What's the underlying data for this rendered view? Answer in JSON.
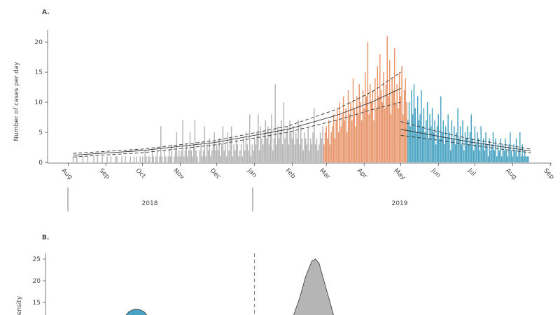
{
  "chart_data": [
    {
      "type": "bar",
      "panel": "A.",
      "ylabel": "Number of cases per day",
      "xlim": [
        -17,
        397
      ],
      "xticks": [
        {
          "value": 0,
          "label": "Aug"
        },
        {
          "value": 31,
          "label": "Sep"
        },
        {
          "value": 61,
          "label": "Oct"
        },
        {
          "value": 92,
          "label": "Nov"
        },
        {
          "value": 122,
          "label": "Dec"
        },
        {
          "value": 153,
          "label": "Jan"
        },
        {
          "value": 184,
          "label": "Feb"
        },
        {
          "value": 212,
          "label": "Mar"
        },
        {
          "value": 243,
          "label": "Apr"
        },
        {
          "value": 273,
          "label": "May"
        },
        {
          "value": 304,
          "label": "Jun"
        },
        {
          "value": 334,
          "label": "Jul"
        },
        {
          "value": 365,
          "label": "Aug"
        },
        {
          "value": 396,
          "label": "Sep"
        }
      ],
      "ylim": [
        0,
        22
      ],
      "yticks": [
        0,
        5,
        10,
        15,
        20
      ],
      "years": [
        "2018",
        "2019"
      ],
      "series": [
        {
          "type": "bar",
          "color": "#b5b5b5",
          "x": [
            4,
            5,
            6,
            7,
            8,
            9,
            10,
            11,
            12,
            13,
            14,
            15,
            16,
            17,
            18,
            19,
            20,
            21,
            22,
            23,
            24,
            25,
            26,
            27,
            28,
            29,
            30,
            31,
            32,
            33,
            34,
            35,
            36,
            37,
            38,
            39,
            40,
            41,
            42,
            43,
            44,
            45,
            46,
            47,
            48,
            49,
            50,
            51,
            52,
            53,
            54,
            55,
            56,
            57,
            58,
            59,
            60,
            61,
            62,
            63,
            64,
            65,
            66,
            67,
            68,
            69,
            70,
            71,
            72,
            73,
            74,
            75,
            76,
            77,
            78,
            79,
            80,
            81,
            82,
            83,
            84,
            85,
            86,
            87,
            88,
            89,
            90,
            91,
            92,
            93,
            94,
            95,
            96,
            97,
            98,
            99,
            100,
            101,
            102,
            103,
            104,
            105,
            106,
            107,
            108,
            109,
            110,
            111,
            112,
            113,
            114,
            115,
            116,
            117,
            118,
            119,
            120,
            121,
            122,
            123,
            124,
            125,
            126,
            127,
            128,
            129,
            130,
            131,
            132,
            133,
            134,
            135,
            136,
            137,
            138,
            139,
            140,
            141,
            142,
            143,
            144,
            145,
            146,
            147,
            148,
            149,
            150,
            151,
            152,
            153,
            154,
            155,
            156,
            157,
            158,
            159,
            160,
            161,
            162,
            163,
            164,
            165,
            166,
            167,
            168,
            169,
            170,
            171,
            172,
            173,
            174,
            175,
            176,
            177,
            178,
            179,
            180,
            181,
            182,
            183,
            184,
            185,
            186,
            187,
            188,
            189,
            190,
            191,
            192,
            193,
            194,
            195,
            196,
            197,
            198,
            199,
            200,
            201,
            202,
            203,
            204,
            205,
            206,
            207,
            208,
            209
          ],
          "values": [
            1,
            0,
            0,
            1,
            0,
            0,
            0,
            0,
            1,
            0,
            0,
            0,
            1,
            0,
            0,
            0,
            0,
            1,
            0,
            0,
            1,
            0,
            0,
            0,
            1,
            0,
            0,
            0,
            1,
            0,
            0,
            1,
            0,
            0,
            0,
            1,
            1,
            0,
            0,
            0,
            1,
            0,
            0,
            1,
            0,
            0,
            0,
            1,
            0,
            0,
            1,
            0,
            1,
            0,
            0,
            1,
            0,
            1,
            0,
            2,
            1,
            0,
            1,
            1,
            0,
            2,
            1,
            0,
            1,
            2,
            0,
            1,
            6,
            1,
            0,
            2,
            1,
            0,
            1,
            2,
            1,
            3,
            0,
            1,
            2,
            5,
            1,
            2,
            1,
            2,
            7,
            1,
            2,
            3,
            1,
            2,
            5,
            2,
            1,
            3,
            7,
            2,
            1,
            0,
            2,
            3,
            1,
            2,
            6,
            1,
            3,
            2,
            4,
            1,
            2,
            3,
            5,
            2,
            3,
            2,
            4,
            1,
            3,
            6,
            2,
            3,
            1,
            5,
            2,
            4,
            6,
            1,
            3,
            2,
            4,
            3,
            1,
            2,
            3,
            1,
            4,
            2,
            5,
            3,
            2,
            8,
            1,
            3,
            2,
            4,
            3,
            5,
            8,
            2,
            6,
            4,
            3,
            5,
            7,
            4,
            6,
            3,
            5,
            8,
            2,
            4,
            13,
            3,
            6,
            4,
            5,
            7,
            3,
            10,
            4,
            5,
            6,
            3,
            7,
            5,
            4,
            6,
            3,
            5,
            4,
            7,
            3,
            6,
            4,
            2,
            5,
            4,
            3,
            6,
            2,
            4,
            3,
            5,
            9,
            3,
            4,
            2,
            3,
            5,
            4,
            6
          ]
        },
        {
          "type": "bar",
          "color": "#e8956a",
          "x": [
            210,
            211,
            212,
            213,
            214,
            215,
            216,
            217,
            218,
            219,
            220,
            221,
            222,
            223,
            224,
            225,
            226,
            227,
            228,
            229,
            230,
            231,
            232,
            233,
            234,
            235,
            236,
            237,
            238,
            239,
            240,
            241,
            242,
            243,
            244,
            245,
            246,
            247,
            248,
            249,
            250,
            251,
            252,
            253,
            254,
            255,
            256,
            257,
            258,
            259,
            260,
            261,
            262,
            263,
            264,
            265,
            266,
            267,
            268,
            269,
            270,
            271,
            272,
            273,
            274,
            275,
            276,
            277,
            278
          ],
          "values": [
            3,
            5,
            6,
            4,
            7,
            3,
            5,
            6,
            8,
            4,
            7,
            9,
            5,
            10,
            6,
            8,
            11,
            7,
            9,
            5,
            12,
            8,
            10,
            7,
            14,
            9,
            6,
            11,
            8,
            13,
            10,
            7,
            12,
            9,
            15,
            11,
            20,
            8,
            13,
            10,
            12,
            7,
            14,
            9,
            16,
            11,
            18,
            12,
            10,
            15,
            9,
            13,
            21,
            11,
            17,
            8,
            14,
            12,
            19,
            10,
            13,
            9,
            15,
            11,
            16,
            8,
            12,
            14,
            10
          ]
        },
        {
          "type": "bar",
          "color": "#4aa3c2",
          "x": [
            279,
            280,
            281,
            282,
            283,
            284,
            285,
            286,
            287,
            288,
            289,
            290,
            291,
            292,
            293,
            294,
            295,
            296,
            297,
            298,
            299,
            300,
            301,
            302,
            303,
            304,
            305,
            306,
            307,
            308,
            309,
            310,
            311,
            312,
            313,
            314,
            315,
            316,
            317,
            318,
            319,
            320,
            321,
            322,
            323,
            324,
            325,
            326,
            327,
            328,
            329,
            330,
            331,
            332,
            333,
            334,
            335,
            336,
            337,
            338,
            339,
            340,
            341,
            342,
            343,
            344,
            345,
            346,
            347,
            348,
            349,
            350,
            351,
            352,
            353,
            354,
            355,
            356,
            357,
            358,
            359,
            360,
            361,
            362,
            363,
            364,
            365,
            366,
            367,
            368,
            369,
            370,
            371,
            372,
            373,
            374,
            375,
            376,
            377,
            378
          ],
          "values": [
            7,
            10,
            6,
            12,
            8,
            13,
            9,
            5,
            11,
            7,
            8,
            12,
            6,
            9,
            5,
            7,
            10,
            4,
            8,
            6,
            9,
            5,
            7,
            3,
            6,
            8,
            4,
            11,
            5,
            7,
            3,
            6,
            4,
            8,
            5,
            2,
            7,
            4,
            6,
            3,
            5,
            9,
            4,
            6,
            3,
            7,
            2,
            5,
            4,
            6,
            3,
            5,
            8,
            4,
            2,
            6,
            3,
            5,
            4,
            2,
            6,
            3,
            4,
            2,
            5,
            3,
            1,
            4,
            2,
            3,
            5,
            2,
            4,
            1,
            3,
            2,
            4,
            1,
            3,
            2,
            4,
            2,
            1,
            3,
            5,
            2,
            1,
            3,
            2,
            4,
            1,
            2,
            5,
            1,
            3,
            1,
            2,
            1,
            1,
            1
          ]
        },
        {
          "type": "line",
          "color": "#333333",
          "dash": false,
          "x": [
            4,
            60,
            120,
            180,
            220,
            250,
            273
          ],
          "values": [
            1.2,
            1.95,
            3.3,
            5.5,
            7.8,
            10.1,
            12.3
          ]
        },
        {
          "type": "line",
          "color": "#333333",
          "dash": true,
          "x": [
            4,
            60,
            120,
            180,
            220,
            250,
            273
          ],
          "values": [
            1.5,
            2.2,
            3.6,
            6.0,
            8.8,
            11.8,
            15
          ]
        },
        {
          "type": "line",
          "color": "#333333",
          "dash": true,
          "x": [
            4,
            60,
            120,
            180,
            220,
            250,
            273
          ],
          "values": [
            0.9,
            1.6,
            2.9,
            5.0,
            7.0,
            8.8,
            10
          ]
        },
        {
          "type": "line",
          "color": "#333333",
          "dash": false,
          "x": [
            273,
            300,
            330,
            360,
            380
          ],
          "values": [
            5.5,
            4.5,
            3.4,
            2.5,
            1.9
          ]
        },
        {
          "type": "line",
          "color": "#333333",
          "dash": true,
          "x": [
            273,
            300,
            330,
            360,
            380
          ],
          "values": [
            6.8,
            5.3,
            3.9,
            2.9,
            2.2
          ]
        },
        {
          "type": "line",
          "color": "#333333",
          "dash": true,
          "x": [
            273,
            300,
            330,
            360,
            380
          ],
          "values": [
            4.5,
            3.8,
            2.9,
            2.1,
            1.6
          ]
        }
      ]
    },
    {
      "type": "area",
      "panel": "B.",
      "ylabel": "Density",
      "xlim": [
        -17,
        397
      ],
      "ylim": [
        12.1,
        26.3
      ],
      "yticks": [
        15,
        20,
        25
      ],
      "vline": 153,
      "series": [
        {
          "type": "area",
          "color": "#4aa3c2",
          "x": [
            46,
            48,
            50,
            54,
            58,
            62,
            64,
            66
          ],
          "values": [
            11.5,
            12.3,
            12.9,
            13.4,
            13.4,
            12.9,
            12.3,
            11.5
          ]
        },
        {
          "type": "area",
          "color": "#b5b5b5",
          "x": [
            182,
            185,
            190,
            195,
            200,
            203,
            206,
            210,
            215,
            218,
            221
          ],
          "values": [
            10,
            12,
            16,
            21,
            24.5,
            25,
            24,
            20,
            15,
            12,
            10
          ]
        }
      ]
    }
  ]
}
